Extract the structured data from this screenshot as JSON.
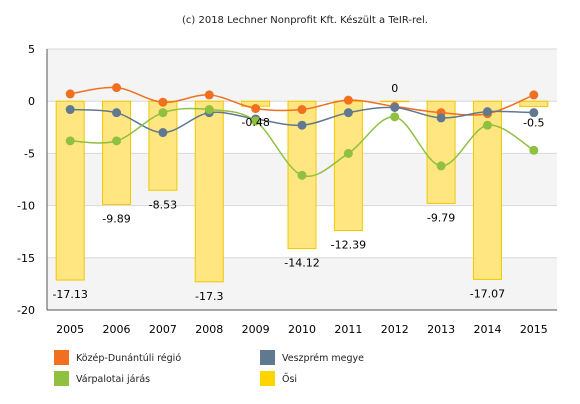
{
  "chart_data": {
    "type": "bar",
    "title": "(c) 2018 Lechner Nonprofit Kft. Készült a TeIR-rel.",
    "categories": [
      "2005",
      "2006",
      "2007",
      "2008",
      "2009",
      "2010",
      "2011",
      "2012",
      "2013",
      "2014",
      "2015"
    ],
    "ylim": [
      -20,
      5
    ],
    "yticks": [
      5,
      0,
      -5,
      -10,
      -15,
      -20
    ],
    "grid": true,
    "legend_position": "bottom",
    "series": [
      {
        "name": "Közép-Dunántúli régió",
        "type": "line",
        "color": "#f07020",
        "values": [
          0.7,
          1.3,
          -0.1,
          0.6,
          -0.7,
          -0.8,
          0.1,
          -0.5,
          -1.1,
          -1.2,
          0.6
        ]
      },
      {
        "name": "Veszprém megye",
        "type": "line",
        "color": "#607890",
        "values": [
          -0.8,
          -1.1,
          -3.0,
          -1.1,
          -1.7,
          -2.3,
          -1.1,
          -0.6,
          -1.6,
          -1.0,
          -1.1
        ]
      },
      {
        "name": "Várpalotai járás",
        "type": "line",
        "color": "#90c040",
        "values": [
          -3.8,
          -3.8,
          -1.1,
          -0.8,
          -1.9,
          -7.1,
          -5.0,
          -1.5,
          -6.2,
          -2.3,
          -4.7
        ]
      },
      {
        "name": "Ősi",
        "type": "bar",
        "color": "#ffe680",
        "border": "#f0c800",
        "values": [
          -17.13,
          -9.89,
          -8.53,
          -17.3,
          -0.48,
          -14.12,
          -12.39,
          0,
          -9.79,
          -17.07,
          -0.5
        ],
        "labels": [
          "-17.13",
          "-9.89",
          "-8.53",
          "-17.3",
          "-0.48",
          "-14.12",
          "-12.39",
          "0",
          "-9.79",
          "-17.07",
          "-0.5"
        ]
      }
    ]
  }
}
